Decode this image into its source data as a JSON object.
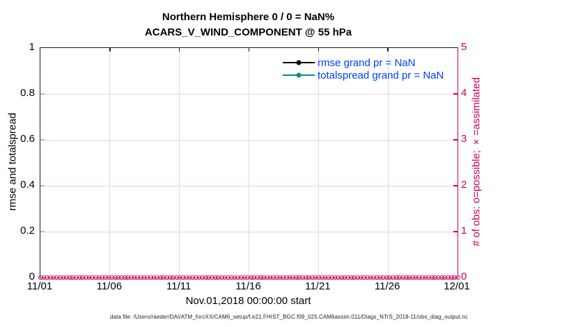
{
  "title": {
    "line1": "Northern Hemisphere 0 / 0 = NaN%",
    "line2": "ACARS_V_WIND_COMPONENT @ 55 hPa"
  },
  "left_axis": {
    "label": "rmse and totalspread",
    "ticks": [
      "0",
      "0.2",
      "0.4",
      "0.6",
      "0.8",
      "1"
    ],
    "range": [
      0,
      1
    ],
    "color": "#000000"
  },
  "right_axis": {
    "label": "# of obs: o=possible; ×=assimilated",
    "ticks": [
      "0",
      "1",
      "2",
      "3",
      "4",
      "5"
    ],
    "range": [
      0,
      5
    ],
    "color": "#cc0052"
  },
  "x_axis": {
    "ticks": [
      "11/01",
      "11/06",
      "11/11",
      "11/16",
      "11/21",
      "11/26",
      "12/01"
    ],
    "label": "Nov.01,2018 00:00:00 start"
  },
  "legend": [
    {
      "label": "rmse grand pr = NaN",
      "color": "#000000"
    },
    {
      "label": "totalspread grand pr = NaN",
      "color": "#0f8c88"
    }
  ],
  "footer": "data file: /Users/raeder/DAI/ATM_forcXX/CAM6_setup/f.e21.FHIST_BGC.f09_025.CAM6assim.011/Diags_NTrS_2018-11/obs_diag_output.nc",
  "colors": {
    "obs_marker": "#cc0052",
    "grid_vertical": "#dcdcdc",
    "grid_horizontal": "#f7cdda",
    "legend_text": "#0040ff"
  },
  "chart_data": {
    "type": "line",
    "title": "Northern Hemisphere 0 / 0 = NaN%",
    "subtitle": "ACARS_V_WIND_COMPONENT @ 55 hPa",
    "xlabel": "Nov.01,2018 00:00:00 start",
    "ylabel_left": "rmse and totalspread",
    "ylabel_right": "# of obs: o=possible; ×=assimilated",
    "x_ticks": [
      "11/01",
      "11/06",
      "11/11",
      "11/16",
      "11/21",
      "11/26",
      "12/01"
    ],
    "x_range_days": 30,
    "ylim_left": [
      0,
      1
    ],
    "ylim_right": [
      0,
      5
    ],
    "grid": true,
    "legend_position": "inside-upper-right",
    "obs_marker_count": 130,
    "series": [
      {
        "name": "rmse grand pr = NaN",
        "axis": "left",
        "color": "#000000",
        "values": "NaN (no curve plotted)"
      },
      {
        "name": "totalspread grand pr = NaN",
        "axis": "left",
        "color": "#0f8c88",
        "values": "NaN (no curve plotted)"
      },
      {
        "name": "# of obs possible (o markers)",
        "axis": "right",
        "color": "#cc0052",
        "constant_value": 0
      },
      {
        "name": "# of obs assimilated (× markers)",
        "axis": "right",
        "color": "#cc0052",
        "constant_value": 0
      }
    ]
  }
}
